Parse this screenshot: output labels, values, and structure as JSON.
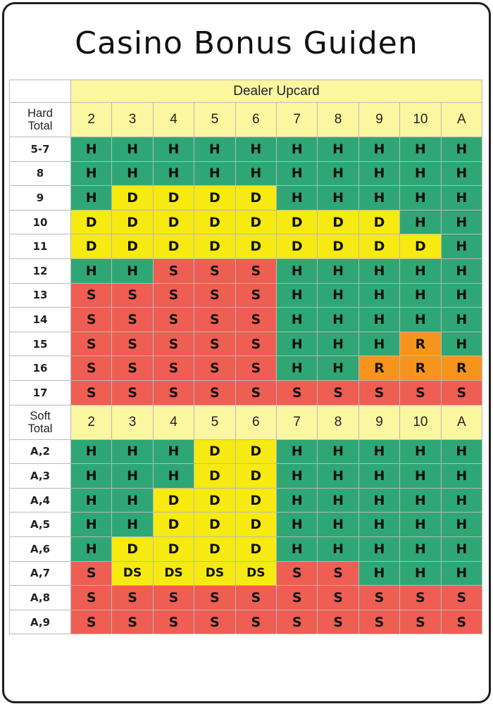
{
  "title": "Casino Bonus Guiden",
  "header": {
    "dealer_upcard": "Dealer Upcard",
    "hard_total": "Hard\nTotal",
    "soft_total": "Soft\nTotal"
  },
  "upcards": [
    "2",
    "3",
    "4",
    "5",
    "6",
    "7",
    "8",
    "9",
    "10",
    "A"
  ],
  "colors": {
    "H": "#2fa774",
    "S": "#ee5e52",
    "D": "#f6ea10",
    "DS": "#f6ea10",
    "R": "#f6941d",
    "header_yellow": "#fbf6a0"
  },
  "hard_rows": [
    {
      "label": "5-7",
      "actions": [
        "H",
        "H",
        "H",
        "H",
        "H",
        "H",
        "H",
        "H",
        "H",
        "H"
      ]
    },
    {
      "label": "8",
      "actions": [
        "H",
        "H",
        "H",
        "H",
        "H",
        "H",
        "H",
        "H",
        "H",
        "H"
      ]
    },
    {
      "label": "9",
      "actions": [
        "H",
        "D",
        "D",
        "D",
        "D",
        "H",
        "H",
        "H",
        "H",
        "H"
      ]
    },
    {
      "label": "10",
      "actions": [
        "D",
        "D",
        "D",
        "D",
        "D",
        "D",
        "D",
        "D",
        "H",
        "H"
      ]
    },
    {
      "label": "11",
      "actions": [
        "D",
        "D",
        "D",
        "D",
        "D",
        "D",
        "D",
        "D",
        "D",
        "H"
      ]
    },
    {
      "label": "12",
      "actions": [
        "H",
        "H",
        "S",
        "S",
        "S",
        "H",
        "H",
        "H",
        "H",
        "H"
      ]
    },
    {
      "label": "13",
      "actions": [
        "S",
        "S",
        "S",
        "S",
        "S",
        "H",
        "H",
        "H",
        "H",
        "H"
      ]
    },
    {
      "label": "14",
      "actions": [
        "S",
        "S",
        "S",
        "S",
        "S",
        "H",
        "H",
        "H",
        "H",
        "H"
      ]
    },
    {
      "label": "15",
      "actions": [
        "S",
        "S",
        "S",
        "S",
        "S",
        "H",
        "H",
        "H",
        "R",
        "H"
      ]
    },
    {
      "label": "16",
      "actions": [
        "S",
        "S",
        "S",
        "S",
        "S",
        "H",
        "H",
        "R",
        "R",
        "R"
      ]
    },
    {
      "label": "17",
      "actions": [
        "S",
        "S",
        "S",
        "S",
        "S",
        "S",
        "S",
        "S",
        "S",
        "S"
      ]
    }
  ],
  "soft_rows": [
    {
      "label": "A,2",
      "actions": [
        "H",
        "H",
        "H",
        "D",
        "D",
        "H",
        "H",
        "H",
        "H",
        "H"
      ]
    },
    {
      "label": "A,3",
      "actions": [
        "H",
        "H",
        "H",
        "D",
        "D",
        "H",
        "H",
        "H",
        "H",
        "H"
      ]
    },
    {
      "label": "A,4",
      "actions": [
        "H",
        "H",
        "D",
        "D",
        "D",
        "H",
        "H",
        "H",
        "H",
        "H"
      ]
    },
    {
      "label": "A,5",
      "actions": [
        "H",
        "H",
        "D",
        "D",
        "D",
        "H",
        "H",
        "H",
        "H",
        "H"
      ]
    },
    {
      "label": "A,6",
      "actions": [
        "H",
        "D",
        "D",
        "D",
        "D",
        "H",
        "H",
        "H",
        "H",
        "H"
      ]
    },
    {
      "label": "A,7",
      "actions": [
        "S",
        "DS",
        "DS",
        "DS",
        "DS",
        "S",
        "S",
        "H",
        "H",
        "H"
      ]
    },
    {
      "label": "A,8",
      "actions": [
        "S",
        "S",
        "S",
        "S",
        "S",
        "S",
        "S",
        "S",
        "S",
        "S"
      ]
    },
    {
      "label": "A,9",
      "actions": [
        "S",
        "S",
        "S",
        "S",
        "S",
        "S",
        "S",
        "S",
        "S",
        "S"
      ]
    }
  ]
}
